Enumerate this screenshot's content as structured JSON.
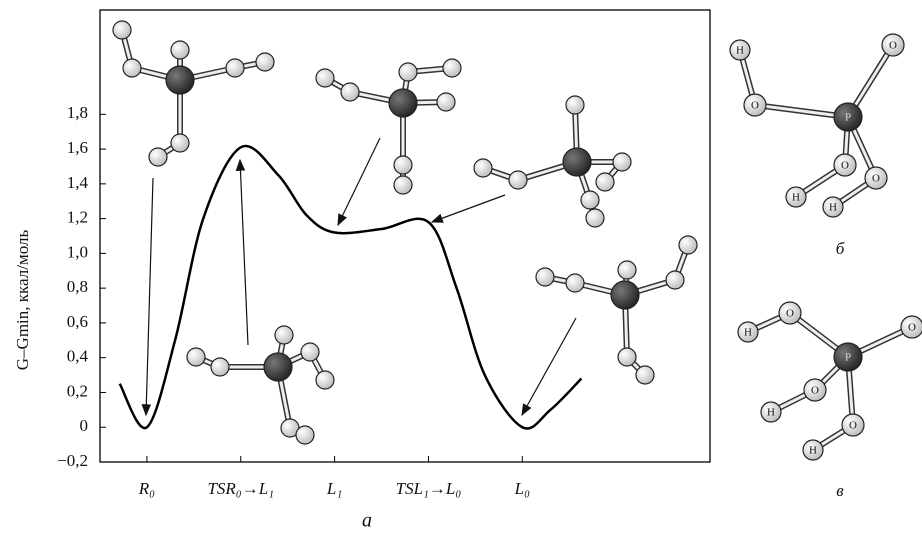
{
  "chart_data": {
    "type": "line",
    "y_label": "G–Gmin, ккал/моль",
    "caption": "а",
    "x": [
      0.71,
      1.0,
      1.3,
      1.6,
      2.0,
      2.4,
      2.7,
      3.0,
      3.5,
      4.0,
      4.3,
      4.6,
      5.0,
      5.3,
      5.63
    ],
    "series": [
      {
        "color": "#000000",
        "values": [
          0.25,
          0.0,
          0.5,
          1.2,
          1.61,
          1.45,
          1.22,
          1.12,
          1.14,
          1.18,
          0.8,
          0.3,
          0.0,
          0.1,
          0.28
        ]
      }
    ],
    "xlim": [
      0.5,
      7
    ],
    "xticks": [
      {
        "value": 1,
        "label": "R₀"
      },
      {
        "value": 2,
        "label": "TSR₀→L₁"
      },
      {
        "value": 3,
        "label": "L₁"
      },
      {
        "value": 4,
        "label": "TSL₁→L₀"
      },
      {
        "value": 5,
        "label": "L₀"
      }
    ],
    "ylim": [
      -0.2,
      2.4
    ],
    "yticks": [
      {
        "value": -0.2,
        "label": "−0,2"
      },
      0,
      {
        "value": 0.2,
        "label": "0,2"
      },
      {
        "value": 0.4,
        "label": "0,4"
      },
      {
        "value": 0.6,
        "label": "0,6"
      },
      {
        "value": 0.8,
        "label": "0,8"
      },
      {
        "value": 1.0,
        "label": "1,0"
      },
      {
        "value": 1.2,
        "label": "1,2"
      },
      {
        "value": 1.4,
        "label": "1,4"
      },
      {
        "value": 1.6,
        "label": "1,6"
      },
      {
        "value": 1.8,
        "label": "1,8"
      }
    ]
  },
  "panel_b": {
    "label": "б",
    "atoms": [
      "P",
      "O",
      "H",
      "O",
      "O",
      "H",
      "O",
      "H"
    ]
  },
  "panel_v": {
    "label": "в",
    "atoms": [
      "P",
      "O",
      "H",
      "O",
      "O",
      "H",
      "O",
      "H"
    ]
  }
}
